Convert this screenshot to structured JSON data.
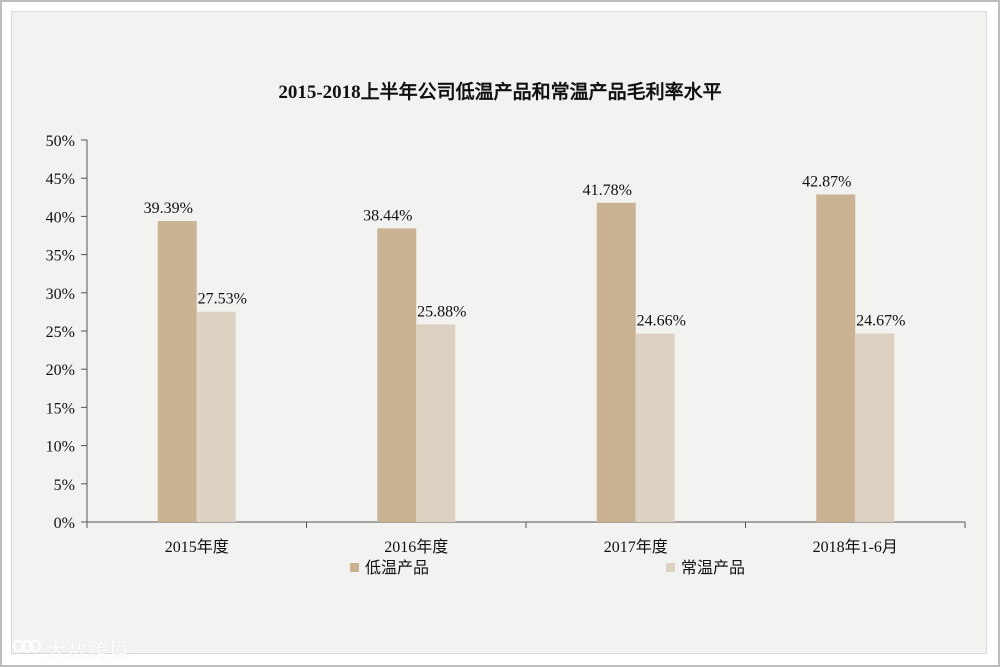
{
  "chart_data": {
    "type": "bar",
    "title": "2015-2018上半年公司低温产品和常温产品毛利率水平",
    "categories": [
      "2015年度",
      "2016年度",
      "2017年度",
      "2018年1-6月"
    ],
    "series": [
      {
        "name": "低温产品",
        "values": [
          39.39,
          38.44,
          41.78,
          42.87
        ],
        "labels": [
          "39.39%",
          "38.44%",
          "41.78%",
          "42.87%"
        ],
        "color": "#c9b393"
      },
      {
        "name": "常温产品",
        "values": [
          27.53,
          25.88,
          24.66,
          24.67
        ],
        "labels": [
          "27.53%",
          "25.88%",
          "24.66%",
          "24.67%"
        ],
        "color": "#ddd2c2"
      }
    ],
    "ylim": [
      0,
      50
    ],
    "yticks": [
      0,
      5,
      10,
      15,
      20,
      25,
      30,
      35,
      40,
      45,
      50
    ],
    "ytick_labels": [
      "0%",
      "5%",
      "10%",
      "15%",
      "20%",
      "25%",
      "30%",
      "35%",
      "40%",
      "45%",
      "50%"
    ],
    "xlabel": "",
    "ylabel": "",
    "grid": false,
    "legend_position": "bottom"
  },
  "watermark": {
    "icon": "logo-icon",
    "text": "大数跨境"
  }
}
